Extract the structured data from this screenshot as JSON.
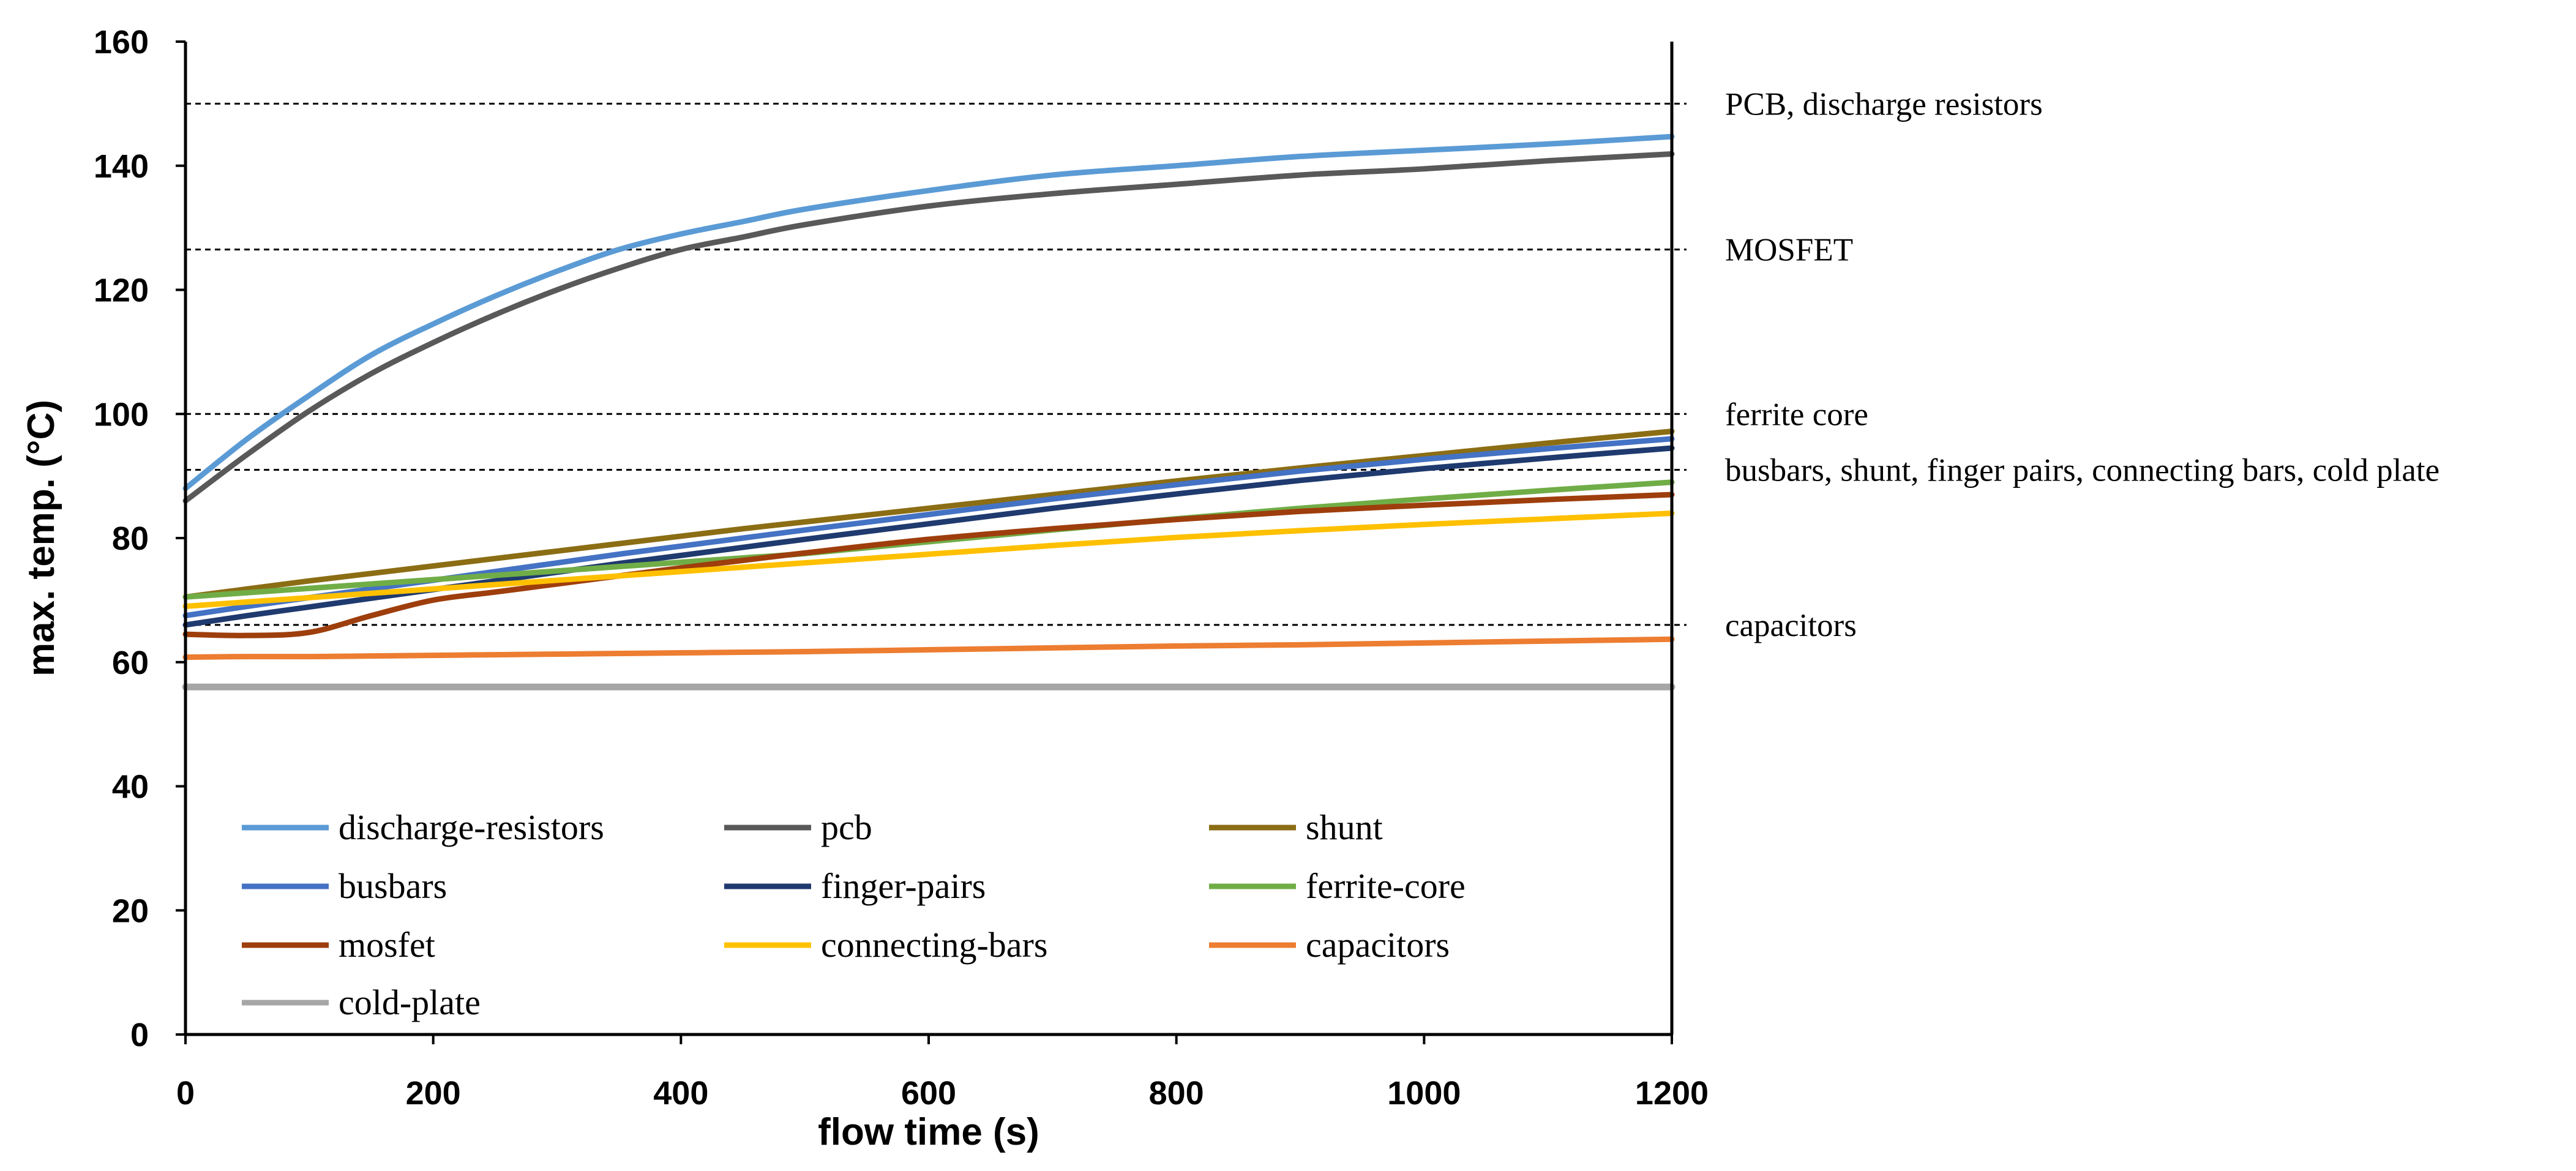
{
  "chart_data": {
    "type": "line",
    "title": "",
    "xlabel": "flow time (s)",
    "ylabel": "max. temp. (°C)",
    "xlim": [
      0,
      1200
    ],
    "ylim": [
      0,
      160
    ],
    "xticks": [
      "0",
      "200",
      "400",
      "600",
      "800",
      "1000",
      "1200"
    ],
    "yticks": [
      "0",
      "20",
      "40",
      "60",
      "80",
      "100",
      "120",
      "140",
      "160"
    ],
    "grid": false,
    "legend_position": "lower-left inside plot",
    "reference_lines": [
      {
        "y": 150,
        "label": "PCB, discharge resistors"
      },
      {
        "y": 126.5,
        "label": "MOSFET"
      },
      {
        "y": 100,
        "label": "ferrite core"
      },
      {
        "y": 91,
        "label": "busbars, shunt, finger pairs, connecting bars, cold plate"
      },
      {
        "y": 66,
        "label": "capacitors"
      }
    ],
    "x": [
      0,
      50,
      100,
      150,
      200,
      250,
      300,
      350,
      400,
      450,
      500,
      600,
      700,
      800,
      900,
      1000,
      1100,
      1200
    ],
    "series": [
      {
        "name": "discharge-resistors",
        "color": "#5b9bd5",
        "values": [
          88,
          96,
          103,
          109.5,
          114.5,
          119,
          123,
          126.5,
          129,
          131,
          133,
          136,
          138.5,
          140,
          141.5,
          142.5,
          143.5,
          144.7
        ]
      },
      {
        "name": "pcb",
        "color": "#595959",
        "values": [
          86,
          93.5,
          100.5,
          106.5,
          111.5,
          116,
          120,
          123.5,
          126.5,
          128.5,
          130.5,
          133.5,
          135.5,
          137,
          138.5,
          139.5,
          140.8,
          141.9
        ]
      },
      {
        "name": "shunt",
        "color": "#8b6d14",
        "values": [
          70.5,
          71.8,
          73.1,
          74.3,
          75.5,
          76.7,
          77.9,
          79.1,
          80.3,
          81.5,
          82.6,
          84.8,
          87,
          89.2,
          91.3,
          93.3,
          95.3,
          97.2
        ]
      },
      {
        "name": "busbars",
        "color": "#4472c4",
        "values": [
          67.5,
          69,
          70.4,
          71.8,
          73.2,
          74.6,
          76,
          77.4,
          78.7,
          80,
          81.3,
          83.8,
          86.3,
          88.6,
          90.8,
          92.7,
          94.4,
          96
        ]
      },
      {
        "name": "finger-pairs",
        "color": "#1f3a6e",
        "values": [
          66,
          67.5,
          68.9,
          70.3,
          71.7,
          73.1,
          74.5,
          75.9,
          77.2,
          78.5,
          79.8,
          82.3,
          84.8,
          87.1,
          89.3,
          91.2,
          92.9,
          94.5
        ]
      },
      {
        "name": "ferrite-core",
        "color": "#70ad47",
        "values": [
          70.5,
          71.2,
          71.9,
          72.6,
          73.3,
          74,
          74.7,
          75.4,
          76.1,
          76.8,
          77.5,
          79.4,
          81.3,
          83.1,
          84.8,
          86.3,
          87.7,
          89
        ]
      },
      {
        "name": "mosfet",
        "color": "#9e3e0c",
        "values": [
          64.5,
          64.3,
          64.8,
          67.5,
          70,
          71.3,
          72.6,
          73.9,
          75.2,
          76.4,
          77.6,
          79.8,
          81.5,
          83,
          84.3,
          85.3,
          86.2,
          87
        ]
      },
      {
        "name": "connecting-bars",
        "color": "#ffc000",
        "values": [
          69,
          69.7,
          70.4,
          71.1,
          71.8,
          72.5,
          73.2,
          73.9,
          74.6,
          75.3,
          76,
          77.4,
          78.8,
          80.1,
          81.2,
          82.2,
          83.1,
          84
        ]
      },
      {
        "name": "capacitors",
        "color": "#ed7d31",
        "values": [
          60.8,
          60.9,
          60.9,
          61,
          61.1,
          61.2,
          61.3,
          61.4,
          61.5,
          61.6,
          61.7,
          62,
          62.3,
          62.6,
          62.8,
          63.1,
          63.4,
          63.7
        ]
      },
      {
        "name": "cold-plate",
        "color": "#a6a6a6",
        "values": [
          56,
          56,
          56,
          56,
          56,
          56,
          56,
          56,
          56,
          56,
          56,
          56,
          56,
          56,
          56,
          56,
          56,
          56
        ]
      }
    ]
  }
}
